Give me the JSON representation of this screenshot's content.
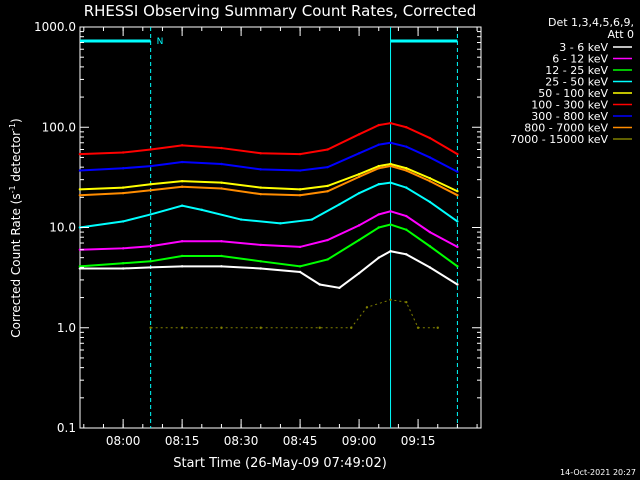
{
  "chart_data": {
    "type": "line",
    "title": "RHESSI Observing Summary Count Rates, Corrected",
    "xlabel": "Start Time (26-May-09 07:49:02)",
    "ylabel_main": "Corrected Count Rate (s",
    "ylabel_sup1": "-1",
    "ylabel_mid": " detector",
    "ylabel_sup2": "-1",
    "ylabel_end": ")",
    "y_scale": "log",
    "ylim": [
      0.1,
      1000
    ],
    "xlim": [
      "07:49:02",
      "09:31:00"
    ],
    "x_ticks": [
      "08:00",
      "08:15",
      "08:30",
      "08:45",
      "09:00",
      "09:15"
    ],
    "y_ticks": [
      "0.1",
      "1.0",
      "10.0",
      "100.0",
      "1000.0"
    ],
    "legend_header": [
      "Det 1,3,4,5,6,9,",
      "Att 0"
    ],
    "legend_position": "right",
    "series": [
      {
        "name": "3 - 6 keV",
        "color": "#ffffff",
        "values": [
          {
            "x": "07:49",
            "y": 3.9
          },
          {
            "x": "08:00",
            "y": 3.9
          },
          {
            "x": "08:07",
            "y": 4.0
          },
          {
            "x": "08:15",
            "y": 4.1
          },
          {
            "x": "08:25",
            "y": 4.1
          },
          {
            "x": "08:35",
            "y": 3.9
          },
          {
            "x": "08:45",
            "y": 3.6
          },
          {
            "x": "08:50",
            "y": 2.7
          },
          {
            "x": "08:55",
            "y": 2.5
          },
          {
            "x": "09:00",
            "y": 3.5
          },
          {
            "x": "09:05",
            "y": 5.0
          },
          {
            "x": "09:08",
            "y": 5.8
          },
          {
            "x": "09:12",
            "y": 5.4
          },
          {
            "x": "09:18",
            "y": 4.0
          },
          {
            "x": "09:25",
            "y": 2.7
          }
        ]
      },
      {
        "name": "6 - 12 keV",
        "color": "#ff00ff",
        "values": [
          {
            "x": "07:49",
            "y": 6.0
          },
          {
            "x": "08:00",
            "y": 6.2
          },
          {
            "x": "08:07",
            "y": 6.5
          },
          {
            "x": "08:15",
            "y": 7.3
          },
          {
            "x": "08:25",
            "y": 7.3
          },
          {
            "x": "08:35",
            "y": 6.7
          },
          {
            "x": "08:45",
            "y": 6.4
          },
          {
            "x": "08:52",
            "y": 7.5
          },
          {
            "x": "09:00",
            "y": 10.5
          },
          {
            "x": "09:05",
            "y": 13.5
          },
          {
            "x": "09:08",
            "y": 14.5
          },
          {
            "x": "09:12",
            "y": 13.0
          },
          {
            "x": "09:18",
            "y": 9.0
          },
          {
            "x": "09:25",
            "y": 6.4
          }
        ]
      },
      {
        "name": "12 - 25 keV",
        "color": "#00ff00",
        "values": [
          {
            "x": "07:49",
            "y": 4.1
          },
          {
            "x": "08:00",
            "y": 4.4
          },
          {
            "x": "08:07",
            "y": 4.6
          },
          {
            "x": "08:15",
            "y": 5.2
          },
          {
            "x": "08:25",
            "y": 5.2
          },
          {
            "x": "08:35",
            "y": 4.6
          },
          {
            "x": "08:45",
            "y": 4.1
          },
          {
            "x": "08:52",
            "y": 4.8
          },
          {
            "x": "09:00",
            "y": 7.5
          },
          {
            "x": "09:05",
            "y": 10.0
          },
          {
            "x": "09:08",
            "y": 10.7
          },
          {
            "x": "09:12",
            "y": 9.5
          },
          {
            "x": "09:18",
            "y": 6.5
          },
          {
            "x": "09:25",
            "y": 4.1
          }
        ]
      },
      {
        "name": "25 - 50 keV",
        "color": "#00ffff",
        "values": [
          {
            "x": "07:49",
            "y": 10.0
          },
          {
            "x": "08:00",
            "y": 11.5
          },
          {
            "x": "08:07",
            "y": 13.5
          },
          {
            "x": "08:15",
            "y": 16.5
          },
          {
            "x": "08:20",
            "y": 15.0
          },
          {
            "x": "08:30",
            "y": 12.0
          },
          {
            "x": "08:40",
            "y": 11.0
          },
          {
            "x": "08:48",
            "y": 12.0
          },
          {
            "x": "08:55",
            "y": 17.0
          },
          {
            "x": "09:00",
            "y": 22.0
          },
          {
            "x": "09:05",
            "y": 27.0
          },
          {
            "x": "09:08",
            "y": 28.0
          },
          {
            "x": "09:12",
            "y": 25.0
          },
          {
            "x": "09:18",
            "y": 18.0
          },
          {
            "x": "09:25",
            "y": 11.5
          }
        ]
      },
      {
        "name": "50 - 100 keV",
        "color": "#ffff00",
        "values": [
          {
            "x": "07:49",
            "y": 24.0
          },
          {
            "x": "08:00",
            "y": 25.0
          },
          {
            "x": "08:07",
            "y": 27.0
          },
          {
            "x": "08:15",
            "y": 29.0
          },
          {
            "x": "08:25",
            "y": 28.0
          },
          {
            "x": "08:35",
            "y": 25.0
          },
          {
            "x": "08:45",
            "y": 24.0
          },
          {
            "x": "08:52",
            "y": 26.0
          },
          {
            "x": "09:00",
            "y": 34.0
          },
          {
            "x": "09:05",
            "y": 41.0
          },
          {
            "x": "09:08",
            "y": 43.0
          },
          {
            "x": "09:12",
            "y": 39.0
          },
          {
            "x": "09:18",
            "y": 31.0
          },
          {
            "x": "09:25",
            "y": 23.0
          }
        ]
      },
      {
        "name": "100 - 300 keV",
        "color": "#ff0000",
        "values": [
          {
            "x": "07:49",
            "y": 54.0
          },
          {
            "x": "08:00",
            "y": 56.0
          },
          {
            "x": "08:07",
            "y": 60.0
          },
          {
            "x": "08:15",
            "y": 66.0
          },
          {
            "x": "08:25",
            "y": 62.0
          },
          {
            "x": "08:35",
            "y": 55.0
          },
          {
            "x": "08:45",
            "y": 54.0
          },
          {
            "x": "08:52",
            "y": 60.0
          },
          {
            "x": "09:00",
            "y": 85.0
          },
          {
            "x": "09:05",
            "y": 105.0
          },
          {
            "x": "09:08",
            "y": 110.0
          },
          {
            "x": "09:12",
            "y": 100.0
          },
          {
            "x": "09:18",
            "y": 78.0
          },
          {
            "x": "09:25",
            "y": 54.0
          }
        ]
      },
      {
        "name": "300 - 800 keV",
        "color": "#0000ff",
        "values": [
          {
            "x": "07:49",
            "y": 37.0
          },
          {
            "x": "08:00",
            "y": 39.0
          },
          {
            "x": "08:07",
            "y": 41.0
          },
          {
            "x": "08:15",
            "y": 45.0
          },
          {
            "x": "08:25",
            "y": 43.0
          },
          {
            "x": "08:35",
            "y": 38.0
          },
          {
            "x": "08:45",
            "y": 37.0
          },
          {
            "x": "08:52",
            "y": 40.0
          },
          {
            "x": "09:00",
            "y": 55.0
          },
          {
            "x": "09:05",
            "y": 67.0
          },
          {
            "x": "09:08",
            "y": 70.0
          },
          {
            "x": "09:12",
            "y": 64.0
          },
          {
            "x": "09:18",
            "y": 50.0
          },
          {
            "x": "09:25",
            "y": 36.0
          }
        ]
      },
      {
        "name": "800 - 7000 keV",
        "color": "#ff8c00",
        "values": [
          {
            "x": "07:49",
            "y": 21.0
          },
          {
            "x": "08:00",
            "y": 22.0
          },
          {
            "x": "08:07",
            "y": 23.5
          },
          {
            "x": "08:15",
            "y": 25.5
          },
          {
            "x": "08:25",
            "y": 24.5
          },
          {
            "x": "08:35",
            "y": 21.5
          },
          {
            "x": "08:45",
            "y": 21.0
          },
          {
            "x": "08:52",
            "y": 23.0
          },
          {
            "x": "09:00",
            "y": 32.0
          },
          {
            "x": "09:05",
            "y": 39.0
          },
          {
            "x": "09:08",
            "y": 41.0
          },
          {
            "x": "09:12",
            "y": 37.0
          },
          {
            "x": "09:18",
            "y": 29.0
          },
          {
            "x": "09:25",
            "y": 21.0
          }
        ]
      },
      {
        "name": "7000 - 15000 keV",
        "color": "#808000",
        "values": [
          {
            "x": "08:07",
            "y": 1.0
          },
          {
            "x": "08:15",
            "y": 1.0
          },
          {
            "x": "08:25",
            "y": 1.0
          },
          {
            "x": "08:35",
            "y": 1.0
          },
          {
            "x": "08:50",
            "y": 1.0
          },
          {
            "x": "08:58",
            "y": 1.0
          },
          {
            "x": "09:02",
            "y": 1.6
          },
          {
            "x": "09:08",
            "y": 1.9
          },
          {
            "x": "09:12",
            "y": 1.8
          },
          {
            "x": "09:15",
            "y": 1.0
          },
          {
            "x": "09:20",
            "y": 1.0
          }
        ]
      }
    ],
    "vertical_markers": [
      {
        "x": "08:07:00",
        "style": "dashed",
        "color": "#00ffff"
      },
      {
        "x": "09:08:00",
        "style": "solid",
        "color": "#00ffff"
      },
      {
        "x": "09:25:00",
        "style": "dashed",
        "color": "#00ffff"
      }
    ],
    "flag_bars": [
      {
        "x_start": "07:49:02",
        "x_end": "08:07:00",
        "color": "#00ffff"
      },
      {
        "x_start": "09:08:00",
        "x_end": "09:25:00",
        "color": "#00ffff"
      }
    ],
    "flag_label": "N",
    "footer_date": "14-Oct-2021 20:27"
  }
}
